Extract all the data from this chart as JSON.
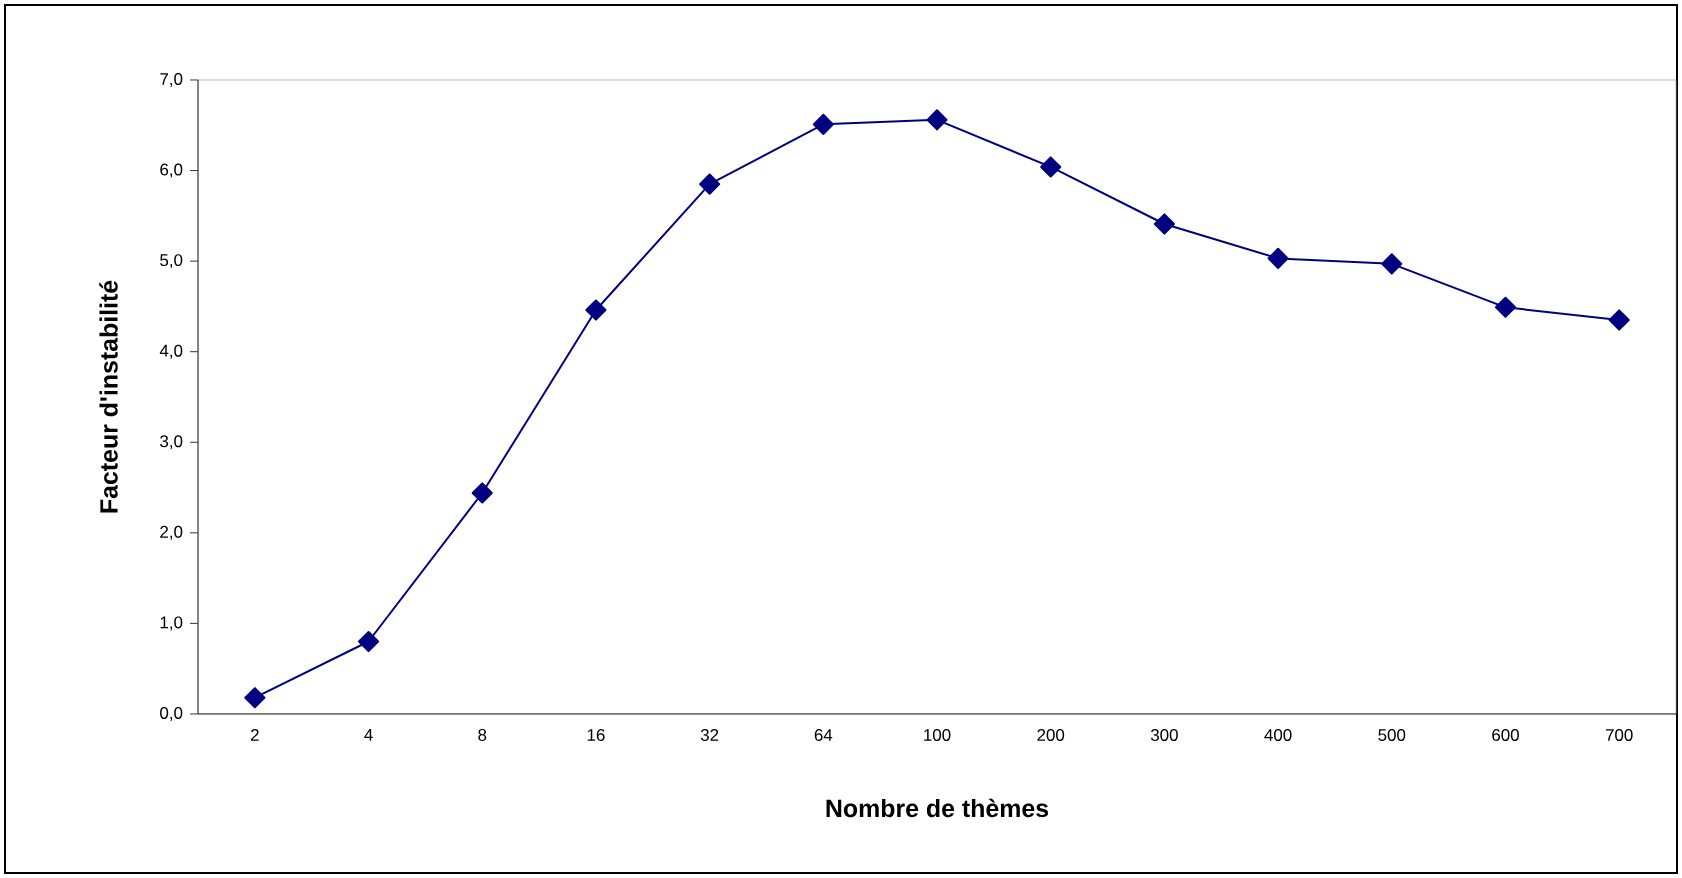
{
  "chart_data": {
    "type": "line",
    "xlabel": "Nombre de thèmes",
    "ylabel": "Facteur d'instabilité",
    "categories": [
      "2",
      "4",
      "8",
      "16",
      "32",
      "64",
      "100",
      "200",
      "300",
      "400",
      "500",
      "600",
      "700"
    ],
    "series": [
      {
        "color": "#000080",
        "values": [
          0.18,
          0.8,
          2.44,
          4.46,
          5.85,
          6.51,
          6.56,
          6.04,
          5.41,
          5.03,
          4.97,
          4.49,
          4.35
        ]
      }
    ],
    "ylim": [
      0,
      7
    ],
    "yticks": [
      {
        "value": 0,
        "label": "0,0"
      },
      {
        "value": 1,
        "label": "1,0"
      },
      {
        "value": 2,
        "label": "2,0"
      },
      {
        "value": 3,
        "label": "3,0"
      },
      {
        "value": 4,
        "label": "4,0"
      },
      {
        "value": 5,
        "label": "5,0"
      },
      {
        "value": 6,
        "label": "6,0"
      },
      {
        "value": 7,
        "label": "7,0"
      }
    ],
    "grid": false,
    "marker": "diamond",
    "line_style": "solid"
  }
}
